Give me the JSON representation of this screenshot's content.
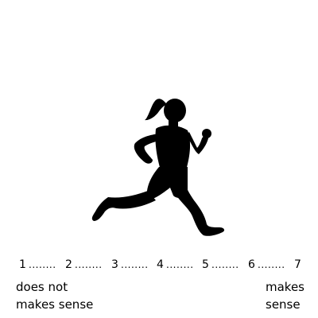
{
  "figure": {
    "icon": "running-woman-silhouette-icon"
  },
  "scale": {
    "points": [
      "1",
      "2",
      "3",
      "4",
      "5",
      "6",
      "7"
    ],
    "separator": "........",
    "left_anchor_line1": "does not",
    "left_anchor_line2": "makes sense",
    "right_anchor_line1": "makes",
    "right_anchor_line2": "sense"
  }
}
